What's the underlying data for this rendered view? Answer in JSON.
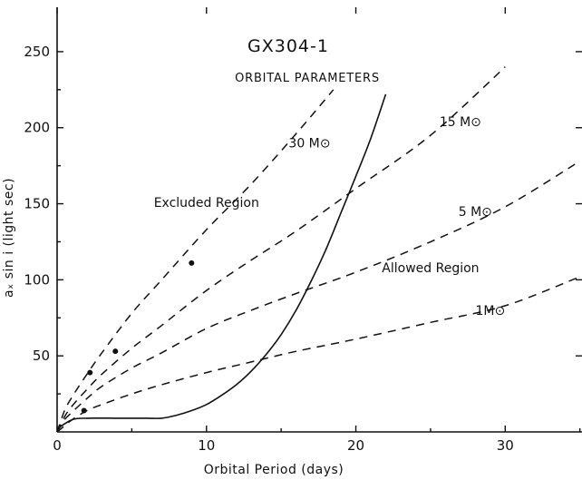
{
  "chart_data": {
    "type": "line",
    "title": "GX304-1",
    "subtitle": "Orbital Parameters",
    "xlabel": "Orbital Period (days)",
    "ylabel": "a_x sin i (light sec)",
    "xlim": [
      0,
      35
    ],
    "ylim": [
      0,
      275
    ],
    "xticks": [
      0,
      10,
      20,
      30
    ],
    "yticks": [
      50,
      100,
      150,
      200,
      250
    ],
    "grid": false,
    "series": [
      {
        "name": "1M⊙",
        "style": "dashed",
        "x": [
          0,
          0.5,
          1,
          2,
          3,
          5,
          7,
          10,
          13,
          16,
          20,
          25,
          30,
          35
        ],
        "y": [
          0,
          4,
          8,
          14,
          18,
          25,
          31,
          39,
          46,
          53,
          61,
          72,
          83,
          102
        ]
      },
      {
        "name": "5 M⊙",
        "style": "dashed",
        "x": [
          0,
          0.5,
          1,
          2,
          3,
          5,
          7,
          10,
          13,
          16,
          20,
          25,
          30,
          35
        ],
        "y": [
          0,
          8,
          13,
          22,
          30,
          42,
          52,
          68,
          80,
          91,
          105,
          125,
          148,
          178
        ]
      },
      {
        "name": "15 M⊙",
        "style": "dashed",
        "x": [
          0,
          0.5,
          1,
          2,
          3,
          5,
          7,
          10,
          13,
          16,
          20,
          25,
          30
        ],
        "y": [
          0,
          10,
          17,
          28,
          38,
          55,
          70,
          93,
          113,
          132,
          160,
          195,
          240
        ]
      },
      {
        "name": "30 M⊙",
        "style": "dashed",
        "x": [
          0,
          0.5,
          1,
          2,
          3,
          5,
          7,
          10,
          13,
          16,
          18.5
        ],
        "y": [
          0,
          14,
          23,
          38,
          52,
          78,
          100,
          133,
          163,
          196,
          225
        ]
      },
      {
        "name": "",
        "style": "solid",
        "x": [
          0,
          1,
          2,
          4,
          6,
          7,
          8,
          9,
          10,
          11,
          12,
          13,
          14,
          15,
          16,
          17,
          18,
          19,
          20,
          21,
          22
        ],
        "y": [
          2,
          8,
          9,
          9,
          9,
          9,
          11,
          14,
          18,
          24,
          31,
          40,
          51,
          64,
          80,
          99,
          120,
          144,
          168,
          193,
          222
        ]
      }
    ],
    "points": [
      {
        "x": 1.8,
        "y": 14
      },
      {
        "x": 2.2,
        "y": 39
      },
      {
        "x": 3.9,
        "y": 53
      },
      {
        "x": 9.0,
        "y": 111
      }
    ],
    "annotations": [
      {
        "text": "Excluded Region",
        "x": 10,
        "y": 148
      },
      {
        "text": "Allowed Region",
        "x": 25,
        "y": 105
      },
      {
        "text": "30 M⊙",
        "x": 16.9,
        "y": 187
      },
      {
        "text": "15 M⊙",
        "x": 27,
        "y": 201
      },
      {
        "text": "5 M⊙",
        "x": 28,
        "y": 142
      },
      {
        "text": "1M⊙",
        "x": 29,
        "y": 77
      }
    ]
  }
}
